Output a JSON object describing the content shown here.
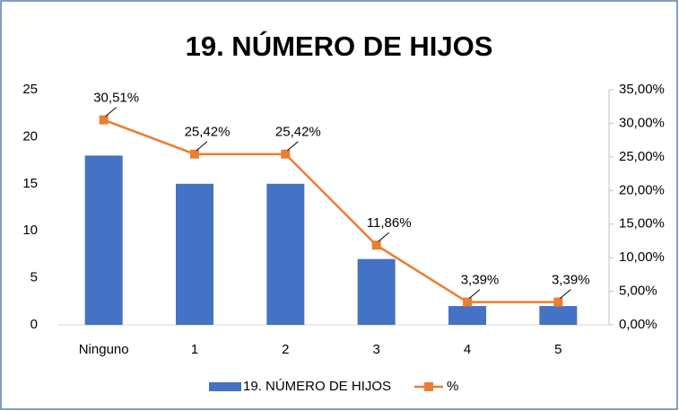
{
  "chart_data": {
    "type": "bar",
    "title": "19. NÚMERO DE HIJOS",
    "categories": [
      "Ninguno",
      "1",
      "2",
      "3",
      "4",
      "5"
    ],
    "series": [
      {
        "name": "19. NÚMERO DE HIJOS",
        "type": "bar",
        "color": "#4472c4",
        "values": [
          18,
          15,
          15,
          7,
          2,
          2
        ]
      },
      {
        "name": "%",
        "type": "line",
        "axis": "y2",
        "color": "#ed7d31",
        "values": [
          30.51,
          25.42,
          25.42,
          11.86,
          3.39,
          3.39
        ],
        "value_labels": [
          "30,51%",
          "25,42%",
          "25,42%",
          "11,86%",
          "3,39%",
          "3,39%"
        ]
      }
    ],
    "ylim": [
      0,
      25
    ],
    "yticks": [
      0,
      5,
      10,
      15,
      20,
      25
    ],
    "y2lim": [
      0,
      35
    ],
    "y2ticks": [
      {
        "value": 0,
        "label": "0,00%"
      },
      {
        "value": 5,
        "label": "5,00%"
      },
      {
        "value": 10,
        "label": "10,00%"
      },
      {
        "value": 15,
        "label": "15,00%"
      },
      {
        "value": 20,
        "label": "20,00%"
      },
      {
        "value": 25,
        "label": "25,00%"
      },
      {
        "value": 30,
        "label": "30,00%"
      },
      {
        "value": 35,
        "label": "35,00%"
      }
    ],
    "grid": false,
    "legend": "bottom"
  }
}
